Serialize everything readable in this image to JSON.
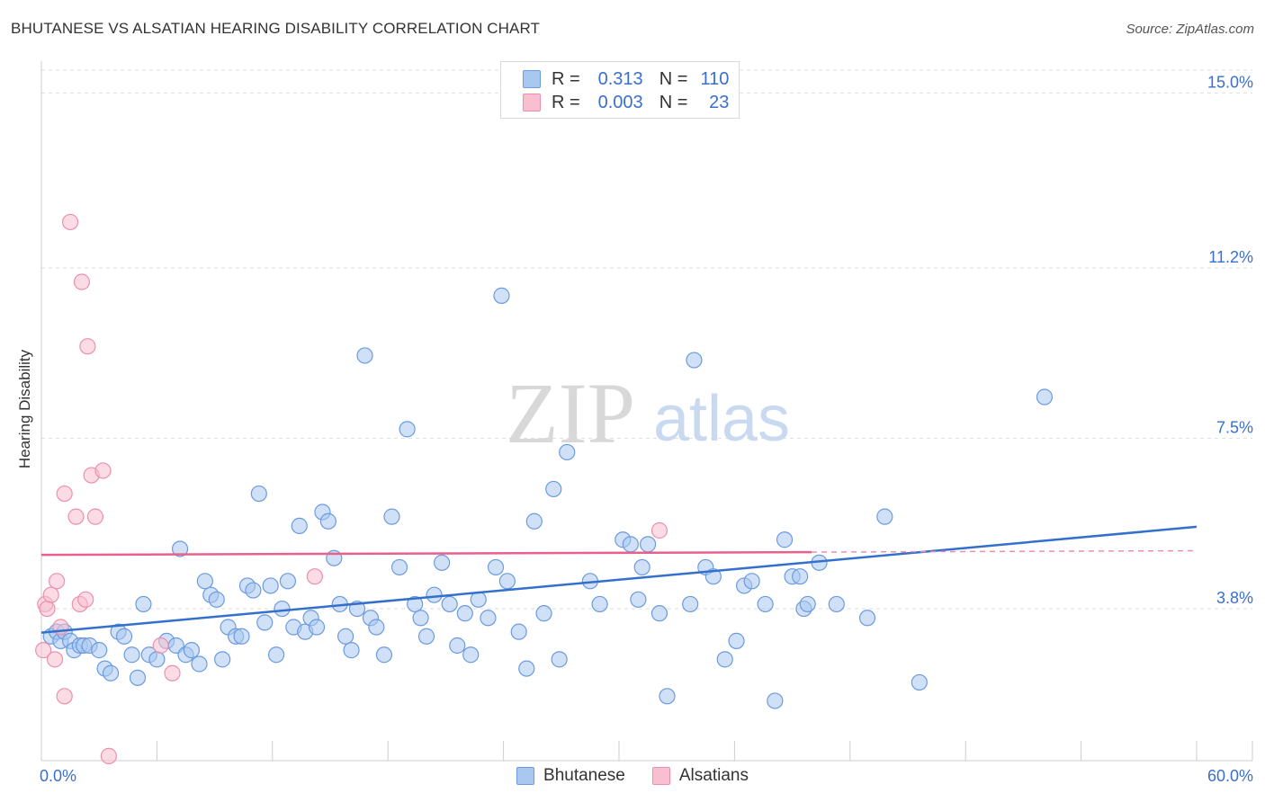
{
  "title": "BHUTANESE VS ALSATIAN HEARING DISABILITY CORRELATION CHART",
  "source": "Source: ZipAtlas.com",
  "watermark": {
    "zip": "ZIP",
    "atlas": "atlas"
  },
  "legend": {
    "rows": [
      {
        "r_label": "R =",
        "r_value": "0.313",
        "n_label": "N =",
        "n_value": "110"
      },
      {
        "r_label": "R =",
        "r_value": "0.003",
        "n_label": "N =",
        "n_value": "23"
      }
    ]
  },
  "colors": {
    "bhutanese_fill": "#a9c8f0",
    "bhutanese_stroke": "#6b9ae0",
    "bhutanese_line": "#3370cc",
    "alsatian_fill": "#f7bfd0",
    "alsatian_stroke": "#ec8fae",
    "alsatian_line": "#e8608c",
    "tick_label": "#3a6fd0",
    "grid": "#dddddd"
  },
  "chart_data": {
    "type": "scatter",
    "title": "BHUTANESE VS ALSATIAN HEARING DISABILITY CORRELATION CHART",
    "xlabel": "",
    "ylabel": "Hearing Disability",
    "xlim": [
      0,
      60
    ],
    "ylim": [
      0.5,
      15.5
    ],
    "x_tick_labels": [
      "0.0%",
      "60.0%"
    ],
    "y_ticks": [
      3.8,
      7.5,
      11.2,
      15.0
    ],
    "y_tick_labels": [
      "3.8%",
      "7.5%",
      "11.2%",
      "15.0%"
    ],
    "grid": "horizontal dashed",
    "legend_position": "top-center and bottom",
    "series": [
      {
        "name": "Bhutanese",
        "r": 0.313,
        "n": 110,
        "trend": {
          "x": [
            0,
            60
          ],
          "y": [
            3.28,
            5.58
          ],
          "style": "solid"
        },
        "points": [
          [
            0.5,
            3.2
          ],
          [
            0.8,
            3.3
          ],
          [
            1.0,
            3.1
          ],
          [
            1.2,
            3.3
          ],
          [
            1.5,
            3.1
          ],
          [
            1.7,
            2.9
          ],
          [
            2.0,
            3.0
          ],
          [
            2.2,
            3.0
          ],
          [
            2.5,
            3.0
          ],
          [
            3.0,
            2.9
          ],
          [
            3.3,
            2.5
          ],
          [
            3.6,
            2.4
          ],
          [
            4.0,
            3.3
          ],
          [
            4.3,
            3.2
          ],
          [
            4.7,
            2.8
          ],
          [
            5.0,
            2.3
          ],
          [
            5.3,
            3.9
          ],
          [
            5.6,
            2.8
          ],
          [
            6.0,
            2.7
          ],
          [
            6.5,
            3.1
          ],
          [
            7.0,
            3.0
          ],
          [
            7.2,
            5.1
          ],
          [
            7.5,
            2.8
          ],
          [
            7.8,
            2.9
          ],
          [
            8.2,
            2.6
          ],
          [
            8.5,
            4.4
          ],
          [
            8.8,
            4.1
          ],
          [
            9.1,
            4.0
          ],
          [
            9.4,
            2.7
          ],
          [
            9.7,
            3.4
          ],
          [
            10.1,
            3.2
          ],
          [
            10.4,
            3.2
          ],
          [
            10.7,
            4.3
          ],
          [
            11.0,
            4.2
          ],
          [
            11.3,
            6.3
          ],
          [
            11.6,
            3.5
          ],
          [
            11.9,
            4.3
          ],
          [
            12.2,
            2.8
          ],
          [
            12.5,
            3.8
          ],
          [
            12.8,
            4.4
          ],
          [
            13.1,
            3.4
          ],
          [
            13.4,
            5.6
          ],
          [
            13.7,
            3.3
          ],
          [
            14.0,
            3.6
          ],
          [
            14.3,
            3.4
          ],
          [
            14.6,
            5.9
          ],
          [
            14.9,
            5.7
          ],
          [
            15.2,
            4.9
          ],
          [
            15.5,
            3.9
          ],
          [
            15.8,
            3.2
          ],
          [
            16.1,
            2.9
          ],
          [
            16.4,
            3.8
          ],
          [
            16.8,
            9.3
          ],
          [
            17.1,
            3.6
          ],
          [
            17.4,
            3.4
          ],
          [
            17.8,
            2.8
          ],
          [
            18.2,
            5.8
          ],
          [
            18.6,
            4.7
          ],
          [
            19.0,
            7.7
          ],
          [
            19.4,
            3.9
          ],
          [
            19.7,
            3.6
          ],
          [
            20.0,
            3.2
          ],
          [
            20.4,
            4.1
          ],
          [
            20.8,
            4.8
          ],
          [
            21.2,
            3.9
          ],
          [
            21.6,
            3.0
          ],
          [
            22.0,
            3.7
          ],
          [
            22.3,
            2.8
          ],
          [
            22.7,
            4.0
          ],
          [
            23.2,
            3.6
          ],
          [
            23.6,
            4.7
          ],
          [
            23.9,
            10.6
          ],
          [
            24.2,
            4.4
          ],
          [
            24.8,
            3.3
          ],
          [
            25.2,
            2.5
          ],
          [
            25.6,
            5.7
          ],
          [
            26.1,
            3.7
          ],
          [
            26.6,
            6.4
          ],
          [
            26.9,
            2.7
          ],
          [
            27.3,
            7.2
          ],
          [
            28.5,
            4.4
          ],
          [
            29.0,
            3.9
          ],
          [
            30.2,
            5.3
          ],
          [
            30.6,
            5.2
          ],
          [
            31.0,
            4.0
          ],
          [
            31.2,
            4.7
          ],
          [
            31.5,
            5.2
          ],
          [
            32.1,
            3.7
          ],
          [
            32.5,
            1.9
          ],
          [
            33.7,
            3.9
          ],
          [
            33.9,
            9.2
          ],
          [
            34.5,
            4.7
          ],
          [
            34.9,
            4.5
          ],
          [
            35.5,
            2.7
          ],
          [
            36.1,
            3.1
          ],
          [
            36.5,
            4.3
          ],
          [
            36.9,
            4.4
          ],
          [
            37.6,
            3.9
          ],
          [
            38.1,
            1.8
          ],
          [
            38.6,
            5.3
          ],
          [
            39.0,
            4.5
          ],
          [
            39.4,
            4.5
          ],
          [
            39.6,
            3.8
          ],
          [
            39.8,
            3.9
          ],
          [
            40.4,
            4.8
          ],
          [
            41.3,
            3.9
          ],
          [
            42.9,
            3.6
          ],
          [
            43.8,
            5.8
          ],
          [
            45.6,
            2.2
          ],
          [
            52.1,
            8.4
          ]
        ]
      },
      {
        "name": "Alsatians",
        "r": 0.003,
        "n": 23,
        "trend": {
          "x": [
            0,
            40
          ],
          "y": [
            4.97,
            5.03
          ],
          "style": "solid",
          "extension": {
            "x": [
              40,
              60
            ],
            "style": "dashed"
          }
        },
        "points": [
          [
            0.1,
            2.9
          ],
          [
            0.2,
            3.9
          ],
          [
            0.3,
            3.8
          ],
          [
            0.5,
            4.1
          ],
          [
            0.7,
            2.7
          ],
          [
            0.8,
            4.4
          ],
          [
            1.0,
            3.4
          ],
          [
            1.2,
            6.3
          ],
          [
            1.5,
            12.2
          ],
          [
            1.8,
            5.8
          ],
          [
            2.0,
            3.9
          ],
          [
            2.1,
            10.9
          ],
          [
            2.3,
            4.0
          ],
          [
            2.4,
            9.5
          ],
          [
            2.6,
            6.7
          ],
          [
            2.8,
            5.8
          ],
          [
            3.2,
            6.8
          ],
          [
            3.5,
            0.6
          ],
          [
            6.2,
            3.0
          ],
          [
            6.8,
            2.4
          ],
          [
            14.2,
            4.5
          ],
          [
            32.1,
            5.5
          ],
          [
            1.2,
            1.9
          ]
        ]
      }
    ]
  },
  "bottom_legend": [
    {
      "label": "Bhutanese"
    },
    {
      "label": "Alsatians"
    }
  ]
}
